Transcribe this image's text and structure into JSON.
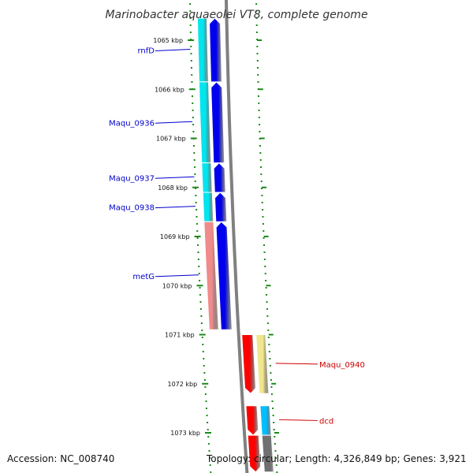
{
  "title": "Marinobacter aquaeolei VT8, complete genome",
  "accession": "Accession: NC_008740",
  "topology": "Topology: circular; Length: 4,326,849 bp; Genes: 3,921",
  "ticks": [
    {
      "kbp": 1065,
      "label": "1065 kbp"
    },
    {
      "kbp": 1066,
      "label": "1066 kbp"
    },
    {
      "kbp": 1067,
      "label": "1067 kbp"
    },
    {
      "kbp": 1068,
      "label": "1068 kbp"
    },
    {
      "kbp": 1069,
      "label": "1069 kbp"
    },
    {
      "kbp": 1070,
      "label": "1070 kbp"
    },
    {
      "kbp": 1071,
      "label": "1071 kbp"
    },
    {
      "kbp": 1072,
      "label": "1072 kbp"
    },
    {
      "kbp": 1073,
      "label": "1073 kbp"
    }
  ],
  "genes": [
    {
      "name": "rnfD",
      "strand": "minus",
      "start_kbp": 1064.55,
      "end_kbp": 1065.85,
      "cog_color": "#00e5ee",
      "label_color": "#0000cc"
    },
    {
      "name": "Maqu_0936",
      "strand": "minus",
      "start_kbp": 1065.85,
      "end_kbp": 1067.5,
      "cog_color": "#00e5ee",
      "label_color": "#0000cc"
    },
    {
      "name": "Maqu_0937",
      "strand": "minus",
      "start_kbp": 1067.5,
      "end_kbp": 1068.1,
      "cog_color": "#00e5ee",
      "label_color": "#0000cc"
    },
    {
      "name": "Maqu_0938",
      "strand": "minus",
      "start_kbp": 1068.1,
      "end_kbp": 1068.7,
      "cog_color": "#00e5ee",
      "label_color": "#0000cc"
    },
    {
      "name": "metG",
      "strand": "minus",
      "start_kbp": 1068.7,
      "end_kbp": 1070.9,
      "cog_color": "#f08b8b",
      "label_color": "#0000cc"
    },
    {
      "name": "Maqu_0940",
      "strand": "plus",
      "start_kbp": 1071.0,
      "end_kbp": 1072.2,
      "cog_color": "#f0e68c",
      "label_color": "#cc0000"
    },
    {
      "name": "dcd",
      "strand": "plus",
      "start_kbp": 1072.45,
      "end_kbp": 1073.05,
      "cog_color": "#00bfff",
      "label_color": "#cc0000"
    },
    {
      "name": "",
      "strand": "plus",
      "start_kbp": 1073.05,
      "end_kbp": 1073.8,
      "cog_color": "#707070",
      "label_color": "#cc0000"
    }
  ],
  "colors": {
    "minus_strand": "#0000ee",
    "plus_strand": "#ff0000",
    "backbone": "#808080",
    "ticks": "#1a8a1a"
  }
}
